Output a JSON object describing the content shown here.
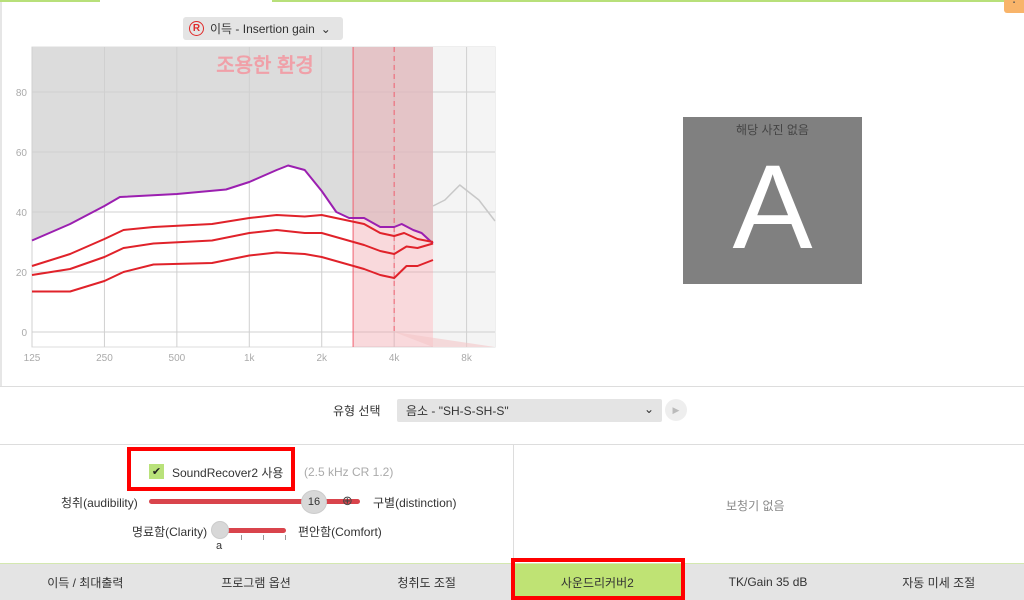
{
  "gain_selector": {
    "icon": "registered-r-icon",
    "mark": "R",
    "label": "이득 - Insertion gain"
  },
  "chart_data": {
    "type": "line",
    "watermark": "조용한 환경",
    "x_ticks": [
      "125",
      "250",
      "500",
      "1k",
      "2k",
      "4k",
      "8k"
    ],
    "x_tick_values": [
      125,
      250,
      500,
      1000,
      2000,
      4000,
      8000
    ],
    "x_scale": "log",
    "y_ticks": [
      "0",
      "20",
      "40",
      "60",
      "80"
    ],
    "y_tick_values": [
      0,
      20,
      40,
      60,
      80
    ],
    "ylim": [
      -5,
      95
    ],
    "xlim": [
      125,
      10500
    ],
    "grid": true,
    "soundrecover_region": [
      2700,
      5800
    ],
    "cutoff_marker": 4000,
    "colors": {
      "limit": "#9b1fb0",
      "gain": "#e0222a",
      "region": "#f4c6c8",
      "gray": "#dcdcdc"
    },
    "series": [
      {
        "role": "limit",
        "color": "#9b1fb0",
        "x": [
          125,
          180,
          250,
          290,
          500,
          800,
          1000,
          1300,
          1450,
          1700,
          2000,
          2300,
          2600,
          3000,
          3500,
          4000,
          4300,
          4800,
          5200,
          5800
        ],
        "y": [
          30.5,
          36,
          42,
          45,
          46,
          47.5,
          50,
          54,
          55.5,
          54,
          47,
          40,
          38,
          38,
          35,
          35,
          36,
          34,
          33,
          29.5
        ]
      },
      {
        "role": "loud",
        "color": "#e0222a",
        "x": [
          125,
          180,
          250,
          300,
          400,
          700,
          1000,
          1300,
          1700,
          2000,
          3000,
          3500,
          4000,
          4400,
          5000,
          5800
        ],
        "y": [
          22,
          26,
          31,
          34,
          35,
          36,
          38,
          39,
          38.5,
          39,
          36,
          33,
          32,
          33,
          31,
          30
        ]
      },
      {
        "role": "medium",
        "color": "#e0222a",
        "x": [
          125,
          180,
          250,
          300,
          400,
          700,
          1000,
          1300,
          1700,
          2000,
          3000,
          3500,
          4000,
          4500,
          5000,
          5800
        ],
        "y": [
          19,
          21,
          25,
          28,
          29.5,
          30.5,
          33,
          34,
          33,
          33,
          29,
          27,
          26,
          28.5,
          28,
          29.5
        ]
      },
      {
        "role": "soft",
        "color": "#e0222a",
        "x": [
          125,
          180,
          250,
          300,
          400,
          700,
          1000,
          1300,
          1700,
          2000,
          3000,
          3500,
          4000,
          4500,
          5000,
          5800
        ],
        "y": [
          13.5,
          13.5,
          17,
          20,
          22.5,
          23,
          25.5,
          26.5,
          26,
          25,
          21,
          19,
          18,
          22,
          22,
          24
        ]
      },
      {
        "role": "input-spectrum",
        "color": "#c8c8c8",
        "x": [
          5800,
          6500,
          7500,
          9000,
          10500
        ],
        "y": [
          42,
          44,
          49,
          44,
          37
        ]
      }
    ]
  },
  "image_panel": {
    "letter": "A",
    "no_image_text": "해당 사진 없음"
  },
  "type_select": {
    "label": "유형 선택",
    "value": "음소 - \"SH-S-SH-S\"",
    "play_icon": "play-icon"
  },
  "soundrecover": {
    "checked": true,
    "label": "SoundRecover2 사용",
    "info": "(2.5 kHz CR 1.2)"
  },
  "slider_audibility": {
    "left_label": "청취(audibility)",
    "right_label": "구별(distinction)",
    "value": "16",
    "fraction": 0.82
  },
  "slider_clarity": {
    "left_label": "명료함(Clarity)",
    "right_label": "편안함(Comfort)",
    "value": "a",
    "fraction": 0
  },
  "right_panel": {
    "no_device": "보청기 없음"
  },
  "tabs": [
    {
      "label": "이득 / 최대출력"
    },
    {
      "label": "프로그램 옵션"
    },
    {
      "label": "청취도 조절"
    },
    {
      "label": "사운드리커버2",
      "active": true
    },
    {
      "label": "TK/Gain 35 dB"
    },
    {
      "label": "자동 미세 조절"
    }
  ]
}
